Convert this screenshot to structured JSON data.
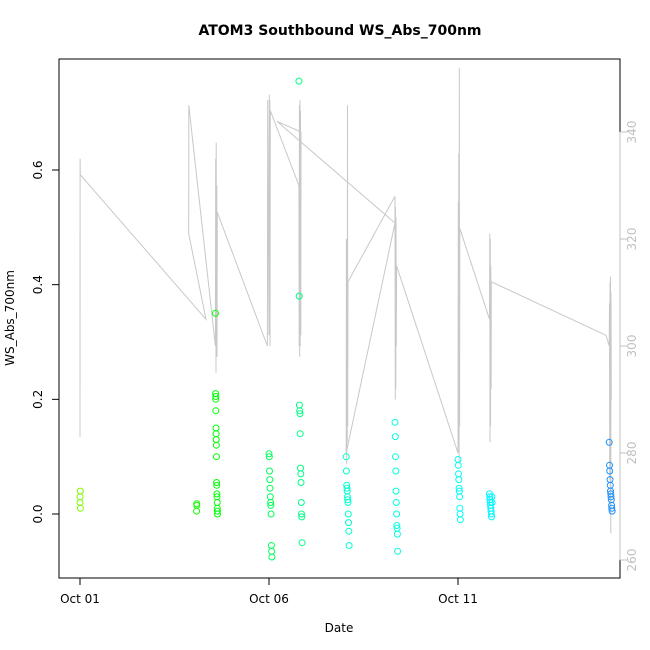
{
  "chart_data": {
    "type": "scatter",
    "title": "ATOM3 Southbound WS_Abs_700nm",
    "xlabel": "Date",
    "ylabel": "WS_Abs_700nm",
    "x_ticks": [
      {
        "date": "2016-10-01",
        "label": "Oct 01"
      },
      {
        "date": "2016-10-06",
        "label": "Oct 06"
      },
      {
        "date": "2016-10-11",
        "label": "Oct 11"
      }
    ],
    "xlim": [
      "2016-10-01T00:00",
      "2016-10-15T12:00"
    ],
    "y_ticks": [
      0.0,
      0.2,
      0.4,
      0.6
    ],
    "y_tick_labels": [
      "0.0",
      "0.2",
      "0.4",
      "0.6"
    ],
    "ylim": [
      -0.1,
      0.79
    ],
    "y2_ticks": [
      260,
      280,
      300,
      320,
      340
    ],
    "y2_tick_labels": [
      "260",
      "280",
      "300",
      "320",
      "340"
    ],
    "y2lim": [
      258,
      354
    ],
    "grid": false,
    "colors": {
      "secondary_line": "#c8c8c8",
      "axis": "#000000",
      "right_axis": "#c0c0c0",
      "point_gradient": [
        "#7cfc00",
        "#00ff00",
        "#00ffcc",
        "#00ffff",
        "#1e90ff"
      ]
    },
    "series": [
      {
        "marker": "open-circle",
        "points": [
          [
            "2016-10-01T00:00",
            0.02
          ],
          [
            "2016-10-01T00:05",
            0.03
          ],
          [
            "2016-10-01T00:10",
            0.04
          ],
          [
            "2016-10-01T00:15",
            0.01
          ],
          [
            "2016-10-04T02:00",
            0.005
          ],
          [
            "2016-10-04T02:05",
            0.018
          ],
          [
            "2016-10-04T02:10",
            0.015
          ],
          [
            "2016-10-04T14:00",
            0.35
          ],
          [
            "2016-10-04T14:05",
            0.21
          ],
          [
            "2016-10-04T14:10",
            0.2
          ],
          [
            "2016-10-04T14:15",
            0.18
          ],
          [
            "2016-10-04T14:20",
            0.15
          ],
          [
            "2016-10-04T14:25",
            0.14
          ],
          [
            "2016-10-04T14:30",
            0.13
          ],
          [
            "2016-10-04T14:35",
            0.12
          ],
          [
            "2016-10-04T14:40",
            0.1
          ],
          [
            "2016-10-04T14:45",
            0.055
          ],
          [
            "2016-10-04T14:50",
            0.05
          ],
          [
            "2016-10-04T14:55",
            0.035
          ],
          [
            "2016-10-04T15:00",
            0.03
          ],
          [
            "2016-10-04T15:05",
            0.02
          ],
          [
            "2016-10-04T15:10",
            0.01
          ],
          [
            "2016-10-04T15:15",
            0.005
          ],
          [
            "2016-10-04T15:20",
            0.0
          ],
          [
            "2016-10-04T14:15",
            0.205
          ],
          [
            "2016-10-06T00:00",
            0.105
          ],
          [
            "2016-10-06T00:10",
            0.1
          ],
          [
            "2016-10-06T00:20",
            0.075
          ],
          [
            "2016-10-06T00:30",
            0.06
          ],
          [
            "2016-10-06T00:40",
            0.045
          ],
          [
            "2016-10-06T00:50",
            0.03
          ],
          [
            "2016-10-06T01:00",
            0.02
          ],
          [
            "2016-10-06T01:10",
            0.015
          ],
          [
            "2016-10-06T01:20",
            0.0
          ],
          [
            "2016-10-06T01:30",
            -0.055
          ],
          [
            "2016-10-06T01:40",
            -0.065
          ],
          [
            "2016-10-06T01:50",
            -0.075
          ],
          [
            "2016-10-06T19:00",
            0.755
          ],
          [
            "2016-10-06T19:10",
            0.38
          ],
          [
            "2016-10-06T19:20",
            0.19
          ],
          [
            "2016-10-06T19:30",
            0.18
          ],
          [
            "2016-10-06T19:40",
            0.175
          ],
          [
            "2016-10-06T19:50",
            0.14
          ],
          [
            "2016-10-06T20:00",
            0.08
          ],
          [
            "2016-10-06T20:10",
            0.07
          ],
          [
            "2016-10-06T20:20",
            0.055
          ],
          [
            "2016-10-06T20:30",
            0.02
          ],
          [
            "2016-10-06T20:40",
            0.0
          ],
          [
            "2016-10-06T20:50",
            -0.005
          ],
          [
            "2016-10-06T21:00",
            -0.05
          ],
          [
            "2016-10-08T01:00",
            0.1
          ],
          [
            "2016-10-08T01:10",
            0.075
          ],
          [
            "2016-10-08T01:20",
            0.05
          ],
          [
            "2016-10-08T01:30",
            0.045
          ],
          [
            "2016-10-08T01:40",
            0.04
          ],
          [
            "2016-10-08T01:50",
            0.03
          ],
          [
            "2016-10-08T02:00",
            0.025
          ],
          [
            "2016-10-08T02:10",
            0.02
          ],
          [
            "2016-10-08T02:20",
            0.0
          ],
          [
            "2016-10-08T02:30",
            -0.015
          ],
          [
            "2016-10-08T02:40",
            -0.03
          ],
          [
            "2016-10-08T02:50",
            -0.055
          ],
          [
            "2016-10-09T08:00",
            0.16
          ],
          [
            "2016-10-09T08:10",
            0.135
          ],
          [
            "2016-10-09T08:20",
            0.1
          ],
          [
            "2016-10-09T08:30",
            0.075
          ],
          [
            "2016-10-09T08:40",
            0.04
          ],
          [
            "2016-10-09T08:50",
            0.02
          ],
          [
            "2016-10-09T09:00",
            0.0
          ],
          [
            "2016-10-09T09:10",
            -0.02
          ],
          [
            "2016-10-09T09:20",
            -0.025
          ],
          [
            "2016-10-09T09:30",
            -0.035
          ],
          [
            "2016-10-09T09:40",
            -0.065
          ],
          [
            "2016-10-11T00:00",
            0.095
          ],
          [
            "2016-10-11T00:10",
            0.085
          ],
          [
            "2016-10-11T00:20",
            0.07
          ],
          [
            "2016-10-11T00:30",
            0.06
          ],
          [
            "2016-10-11T00:40",
            0.045
          ],
          [
            "2016-10-11T00:50",
            0.04
          ],
          [
            "2016-10-11T01:00",
            0.03
          ],
          [
            "2016-10-11T01:10",
            0.01
          ],
          [
            "2016-10-11T01:20",
            0.0
          ],
          [
            "2016-10-11T01:30",
            -0.01
          ],
          [
            "2016-10-11T20:00",
            0.035
          ],
          [
            "2016-10-11T20:10",
            0.03
          ],
          [
            "2016-10-11T20:20",
            0.025
          ],
          [
            "2016-10-11T20:30",
            0.02
          ],
          [
            "2016-10-11T20:40",
            0.015
          ],
          [
            "2016-10-11T20:50",
            0.01
          ],
          [
            "2016-10-11T21:00",
            0.005
          ],
          [
            "2016-10-11T21:10",
            0.0
          ],
          [
            "2016-10-11T21:20",
            -0.005
          ],
          [
            "2016-10-11T21:30",
            0.03
          ],
          [
            "2016-10-11T21:40",
            0.02
          ],
          [
            "2016-10-15T00:00",
            0.125
          ],
          [
            "2016-10-15T00:10",
            0.085
          ],
          [
            "2016-10-15T00:20",
            0.075
          ],
          [
            "2016-10-15T00:30",
            0.06
          ],
          [
            "2016-10-15T00:40",
            0.05
          ],
          [
            "2016-10-15T00:50",
            0.04
          ],
          [
            "2016-10-15T01:00",
            0.035
          ],
          [
            "2016-10-15T01:10",
            0.03
          ],
          [
            "2016-10-15T01:20",
            0.025
          ],
          [
            "2016-10-15T01:30",
            0.015
          ],
          [
            "2016-10-15T01:40",
            0.01
          ],
          [
            "2016-10-15T01:50",
            0.005
          ]
        ]
      },
      {
        "axis": "right",
        "marker": "line",
        "points": [
          [
            "2016-10-01T00:00",
            283
          ],
          [
            "2016-10-01T00:05",
            335
          ],
          [
            "2016-10-01T00:10",
            332
          ],
          [
            "2016-10-04T08:00",
            305
          ],
          [
            "2016-10-03T21:00",
            321
          ],
          [
            "2016-10-03T21:05",
            345
          ],
          [
            "2016-10-04T14:00",
            300
          ],
          [
            "2016-10-04T14:10",
            335
          ],
          [
            "2016-10-04T14:20",
            295
          ],
          [
            "2016-10-04T14:30",
            338
          ],
          [
            "2016-10-04T14:40",
            302
          ],
          [
            "2016-10-04T14:50",
            330
          ],
          [
            "2016-10-04T15:00",
            298
          ],
          [
            "2016-10-04T15:10",
            325
          ],
          [
            "2016-10-05T23:00",
            300
          ],
          [
            "2016-10-05T23:10",
            346
          ],
          [
            "2016-10-06T00:00",
            302
          ],
          [
            "2016-10-06T00:10",
            347
          ],
          [
            "2016-10-06T00:20",
            305
          ],
          [
            "2016-10-06T00:30",
            346
          ],
          [
            "2016-10-06T00:40",
            300
          ],
          [
            "2016-10-06T00:50",
            344
          ],
          [
            "2016-10-06T19:00",
            330
          ],
          [
            "2016-10-06T19:10",
            300
          ],
          [
            "2016-10-06T19:20",
            345
          ],
          [
            "2016-10-06T19:30",
            298
          ],
          [
            "2016-10-06T19:40",
            346
          ],
          [
            "2016-10-06T19:50",
            300
          ],
          [
            "2016-10-06T20:00",
            344
          ],
          [
            "2016-10-06T20:10",
            302
          ],
          [
            "2016-10-06T20:20",
            340
          ],
          [
            "2016-10-06T05:00",
            342
          ],
          [
            "2016-10-09T08:00",
            323
          ],
          [
            "2016-10-08T01:00",
            280
          ],
          [
            "2016-10-08T01:10",
            320
          ],
          [
            "2016-10-08T01:20",
            278
          ],
          [
            "2016-10-08T01:30",
            318
          ],
          [
            "2016-10-08T01:40",
            282
          ],
          [
            "2016-10-08T01:50",
            345
          ],
          [
            "2016-10-08T02:00",
            285
          ],
          [
            "2016-10-08T02:10",
            312
          ],
          [
            "2016-10-09T08:00",
            328
          ],
          [
            "2016-10-09T08:10",
            290
          ],
          [
            "2016-10-09T08:20",
            326
          ],
          [
            "2016-10-09T08:30",
            292
          ],
          [
            "2016-10-09T08:40",
            324
          ],
          [
            "2016-10-09T08:50",
            300
          ],
          [
            "2016-10-09T09:00",
            315
          ],
          [
            "2016-10-11T00:00",
            280
          ],
          [
            "2016-10-11T00:10",
            327
          ],
          [
            "2016-10-11T00:20",
            283
          ],
          [
            "2016-10-11T00:30",
            336
          ],
          [
            "2016-10-11T00:40",
            278
          ],
          [
            "2016-10-11T00:50",
            352
          ],
          [
            "2016-10-11T01:00",
            285
          ],
          [
            "2016-10-11T01:10",
            322
          ],
          [
            "2016-10-11T20:00",
            305
          ],
          [
            "2016-10-11T20:10",
            321
          ],
          [
            "2016-10-11T20:20",
            282
          ],
          [
            "2016-10-11T20:30",
            320
          ],
          [
            "2016-10-11T20:40",
            285
          ],
          [
            "2016-10-11T20:50",
            315
          ],
          [
            "2016-10-11T21:00",
            292
          ],
          [
            "2016-10-11T21:10",
            312
          ],
          [
            "2016-10-14T22:00",
            302
          ],
          [
            "2016-10-15T00:00",
            300
          ],
          [
            "2016-10-15T00:10",
            308
          ],
          [
            "2016-10-15T00:20",
            275
          ],
          [
            "2016-10-15T00:30",
            312
          ],
          [
            "2016-10-15T00:40",
            270
          ],
          [
            "2016-10-15T00:50",
            313
          ],
          [
            "2016-10-15T01:00",
            265
          ],
          [
            "2016-10-15T01:10",
            310
          ],
          [
            "2016-10-15T01:20",
            290
          ]
        ]
      }
    ]
  }
}
